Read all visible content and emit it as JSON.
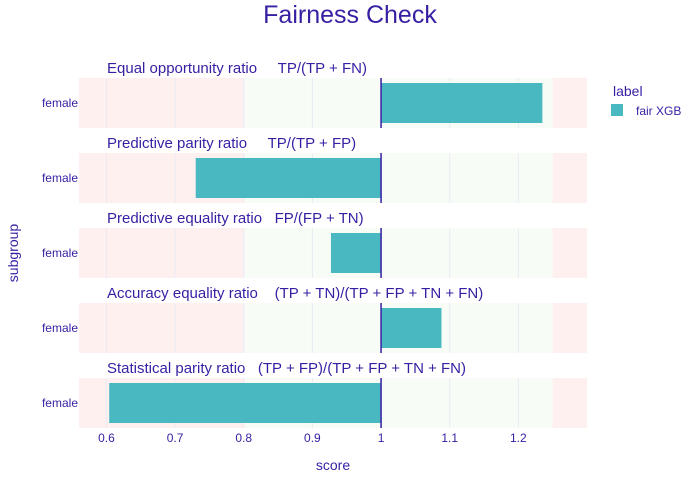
{
  "chart_data": {
    "type": "bar",
    "orientation": "horizontal",
    "title": "Fairness Check",
    "xlabel": "score",
    "ylabel": "subgroup",
    "xlim": [
      0.56,
      1.3
    ],
    "xticks": [
      "0.6",
      "0.7",
      "0.8",
      "0.9",
      "1",
      "1.1",
      "1.2"
    ],
    "reference_value": 1,
    "fair_band": [
      0.8,
      1.25
    ],
    "legend": {
      "title": "label",
      "placement": "right",
      "entries": [
        {
          "name": "fair XGB",
          "color": "#4ab8c1"
        }
      ]
    },
    "colors": {
      "bar": "#4ab8c1",
      "reference_line": "#371ea3",
      "unfair_zone": "#fff0f0",
      "fair_zone": "#f7fcf7"
    },
    "panels": [
      {
        "title": "Equal opportunity ratio     TP/(TP + FN)",
        "category": "female",
        "value": 1.235
      },
      {
        "title": "Predictive parity ratio     TP/(TP + FP)",
        "category": "female",
        "value": 0.73
      },
      {
        "title": "Predictive equality ratio   FP/(FP + TN)",
        "category": "female",
        "value": 0.927
      },
      {
        "title": "Accuracy equality ratio    (TP + TN)/(TP + FP + TN + FN)",
        "category": "female",
        "value": 1.088
      },
      {
        "title": "Statistical parity ratio   (TP + FP)/(TP + FP + TN + FN)",
        "category": "female",
        "value": 0.604
      }
    ]
  }
}
